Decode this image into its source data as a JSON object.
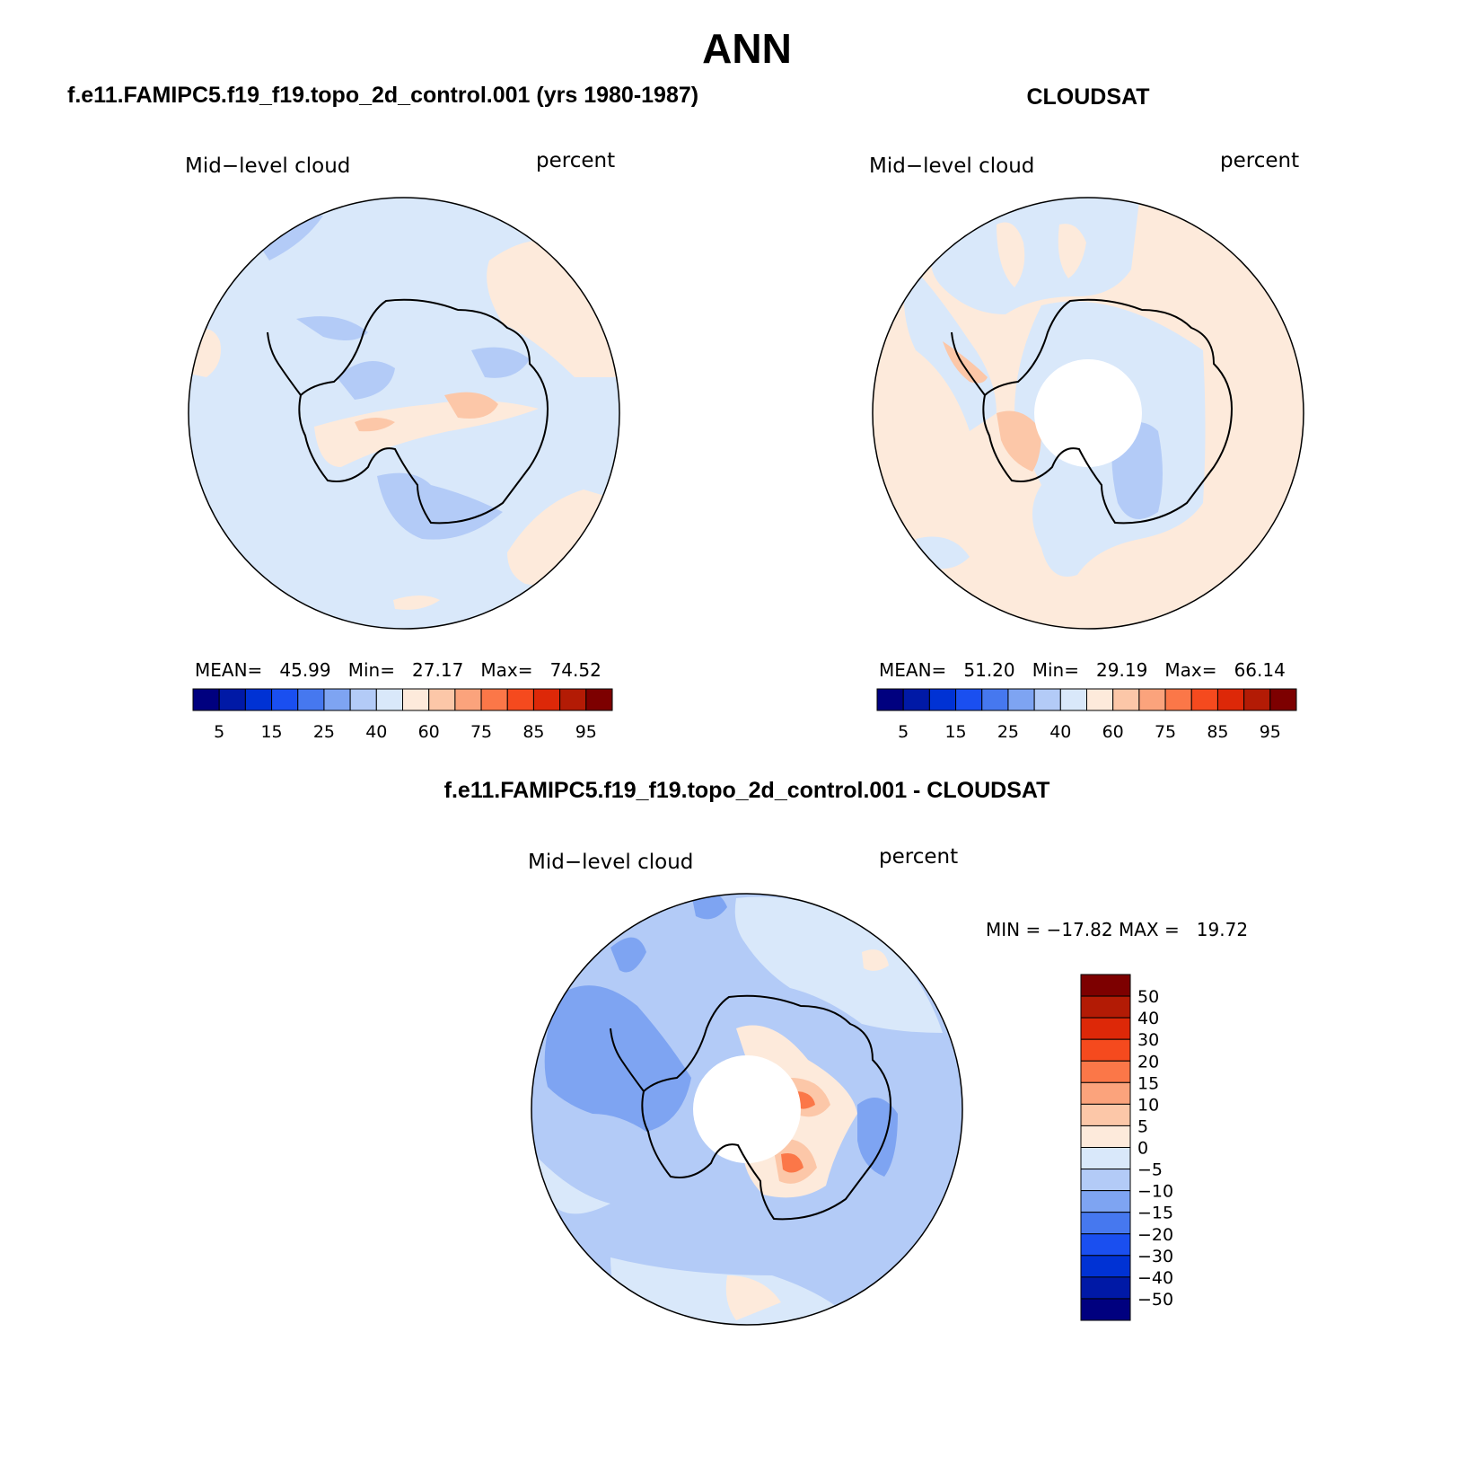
{
  "figure": {
    "title": "ANN",
    "colors": {
      "seq": [
        "#00007f",
        "#0019a6",
        "#0032d4",
        "#1a4ff0",
        "#4678ef",
        "#7ea4f2",
        "#b3cbf7",
        "#d9e8fa",
        "#fdeadb",
        "#fcc7a8",
        "#fba37c",
        "#fb7748",
        "#f54a1e",
        "#dd2808",
        "#b31b05",
        "#7d0000"
      ],
      "diff": [
        "#00007f",
        "#0019a6",
        "#0032d4",
        "#1a4ff0",
        "#4678ef",
        "#7ea4f2",
        "#b3cbf7",
        "#d9e8fa",
        "#fdeadb",
        "#fcc7a8",
        "#fba37c",
        "#fb7748",
        "#f54a1e",
        "#dd2808",
        "#b31b05",
        "#7d0000"
      ]
    }
  },
  "panels": [
    {
      "header": "f.e11.FAMIPC5.f19_f19.topo_2d_control.001 (yrs 1980-1987)",
      "left_label": "Mid−level cloud",
      "right_label": "percent",
      "stats": {
        "mean_label": "MEAN=",
        "mean": "45.99",
        "min_label": "Min=",
        "min": "27.17",
        "max_label": "Max=",
        "max": "74.52"
      },
      "colorbar_labels": [
        "5",
        "15",
        "25",
        "40",
        "60",
        "75",
        "85",
        "95"
      ]
    },
    {
      "header": "CLOUDSAT",
      "left_label": "Mid−level cloud",
      "right_label": "percent",
      "stats": {
        "mean_label": "MEAN=",
        "mean": "51.20",
        "min_label": "Min=",
        "min": "29.19",
        "max_label": "Max=",
        "max": "66.14"
      },
      "colorbar_labels": [
        "5",
        "15",
        "25",
        "40",
        "60",
        "75",
        "85",
        "95"
      ]
    },
    {
      "header": "f.e11.FAMIPC5.f19_f19.topo_2d_control.001 - CLOUDSAT",
      "left_label": "Mid−level cloud",
      "right_label": "percent",
      "stats_text": "MIN = −17.82 MAX =   19.72",
      "colorbar_labels": [
        "50",
        "40",
        "30",
        "20",
        "15",
        "10",
        "5",
        "0",
        "−5",
        "−10",
        "−15",
        "−20",
        "−30",
        "−40",
        "−50"
      ]
    }
  ]
}
